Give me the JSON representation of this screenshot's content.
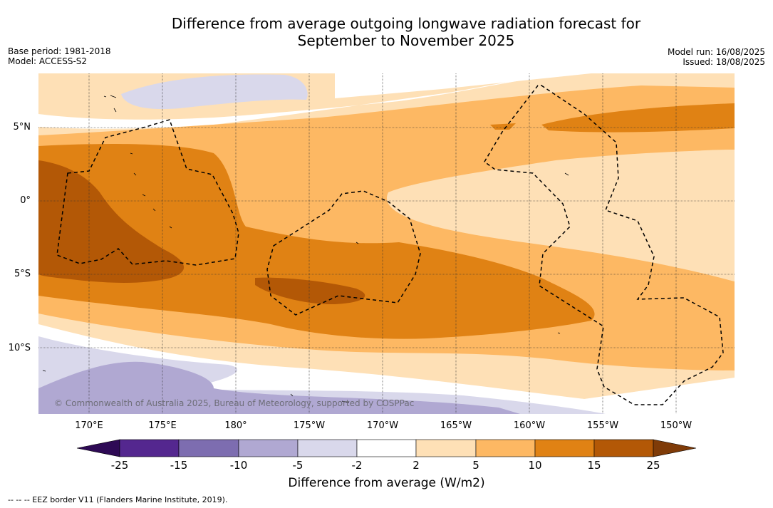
{
  "title": {
    "line1": "Difference from average outgoing longwave radiation forecast for",
    "line2": "September to November 2025"
  },
  "meta": {
    "base_period": "Base period: 1981-2018",
    "model": "Model: ACCESS-S2",
    "model_run": "Model run: 16/08/2025",
    "issued": "Issued: 18/08/2025"
  },
  "map": {
    "lat_labels": [
      "5°N",
      "0°",
      "5°S",
      "10°S"
    ],
    "lon_labels": [
      "170°E",
      "175°E",
      "180°",
      "175°W",
      "170°W",
      "165°W",
      "160°W",
      "155°W",
      "150°W"
    ],
    "copyright": "© Commonwealth of Australia 2025, Bureau of Meteorology, supported by COSPPac",
    "colors": {
      "n25": "#2e0a55",
      "n15": "#54278f",
      "n10": "#7d6db0",
      "n5": "#b0a8d2",
      "n2": "#d9d8eb",
      "z": "#ffffff",
      "p2": "#fee0b6",
      "p5": "#fdb863",
      "p10": "#e08214",
      "p15": "#b35806",
      "p25": "#7f3b08"
    }
  },
  "colorbar": {
    "ticks": [
      "-25",
      "-15",
      "-10",
      "-5",
      "-2",
      "2",
      "5",
      "10",
      "15",
      "25"
    ],
    "label": "Difference from average (W/m2)"
  },
  "legend_note": "--  --  -- EEZ border V11 (Flanders Marine Institute, 2019)."
}
